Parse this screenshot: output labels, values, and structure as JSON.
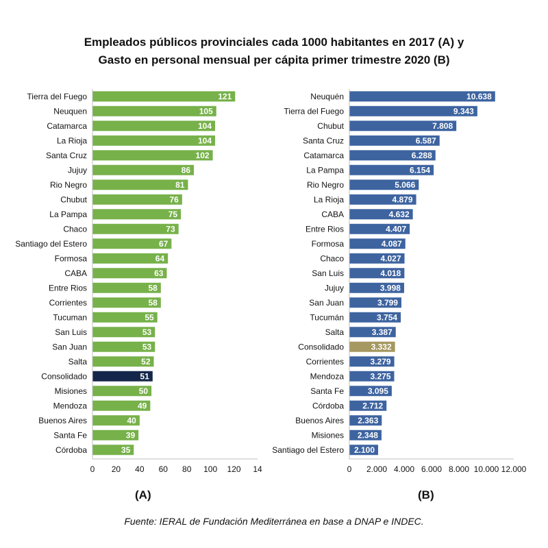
{
  "title_line1": "Empleados públicos provinciales cada 1000 habitantes en 2017 (A) y",
  "title_line2": "Gasto en personal mensual per cápita primer trimestre 2020 (B)",
  "source": "Fuente: IERAL de Fundación Mediterránea en base a DNAP e INDEC.",
  "chart_data": [
    {
      "type": "bar",
      "orientation": "horizontal",
      "panel_label": "(A)",
      "categories": [
        "Tierra del Fuego",
        "Neuquen",
        "Catamarca",
        "La Rioja",
        "Santa Cruz",
        "Jujuy",
        "Rio Negro",
        "Chubut",
        "La Pampa",
        "Chaco",
        "Santiago del Estero",
        "Formosa",
        "CABA",
        "Entre Rios",
        "Corrientes",
        "Tucuman",
        "San Luis",
        "San Juan",
        "Salta",
        "Consolidado",
        "Misiones",
        "Mendoza",
        "Buenos Aires",
        "Santa Fe",
        "Córdoba"
      ],
      "values": [
        121,
        105,
        104,
        104,
        102,
        86,
        81,
        76,
        75,
        73,
        67,
        64,
        63,
        58,
        58,
        55,
        53,
        53,
        52,
        51,
        50,
        49,
        40,
        39,
        35
      ],
      "value_labels": [
        "121",
        "105",
        "104",
        "104",
        "102",
        "86",
        "81",
        "76",
        "75",
        "73",
        "67",
        "64",
        "63",
        "58",
        "58",
        "55",
        "53",
        "53",
        "52",
        "51",
        "50",
        "49",
        "40",
        "39",
        "35"
      ],
      "xlim": [
        0,
        140
      ],
      "ticks": [
        "0",
        "20",
        "40",
        "60",
        "80",
        "100",
        "120",
        "14"
      ],
      "bar_color": "#77b14a",
      "highlight_category": "Consolidado",
      "highlight_color": "#14274a"
    },
    {
      "type": "bar",
      "orientation": "horizontal",
      "panel_label": "(B)",
      "categories": [
        "Neuquén",
        "Tierra del Fuego",
        "Chubut",
        "Santa Cruz",
        "Catamarca",
        "La Pampa",
        "Rio Negro",
        "La Rioja",
        "CABA",
        "Entre Rios",
        "Formosa",
        "Chaco",
        "San Luis",
        "Jujuy",
        "San Juan",
        "Tucumán",
        "Salta",
        "Consolidado",
        "Corrientes",
        "Mendoza",
        "Santa Fe",
        "Córdoba",
        "Buenos Aires",
        "Misiones",
        "Santiago del Estero"
      ],
      "values": [
        10638,
        9343,
        7808,
        6587,
        6288,
        6154,
        5066,
        4879,
        4632,
        4407,
        4087,
        4027,
        4018,
        3998,
        3799,
        3754,
        3387,
        3332,
        3279,
        3275,
        3095,
        2712,
        2363,
        2348,
        2100
      ],
      "value_labels": [
        "10.638",
        "9.343",
        "7.808",
        "6.587",
        "6.288",
        "6.154",
        "5.066",
        "4.879",
        "4.632",
        "4.407",
        "4.087",
        "4.027",
        "4.018",
        "3.998",
        "3.799",
        "3.754",
        "3.387",
        "3.332",
        "3.279",
        "3.275",
        "3.095",
        "2.712",
        "2.363",
        "2.348",
        "2.100"
      ],
      "xlim": [
        0,
        12000
      ],
      "ticks": [
        "0",
        "2.000",
        "4.000",
        "6.000",
        "8.000",
        "10.000",
        "12.000"
      ],
      "bar_color": "#3e64a0",
      "highlight_category": "Consolidado",
      "highlight_color": "#a59860"
    }
  ]
}
